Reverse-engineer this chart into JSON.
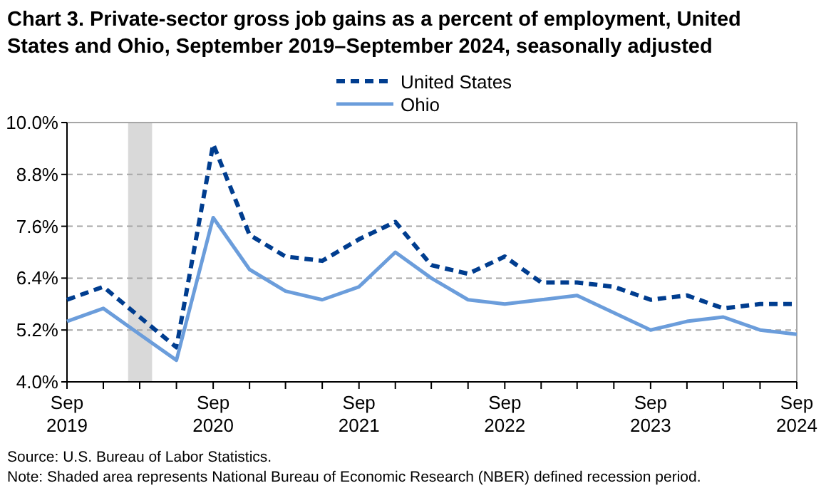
{
  "chart_data": {
    "type": "line",
    "title": "Chart 3. Private-sector gross job gains as a percent of employment, United States and Ohio, September 2019–September 2024, seasonally adjusted",
    "x": [
      "2019-09",
      "2019-12",
      "2020-03",
      "2020-06",
      "2020-09",
      "2020-12",
      "2021-03",
      "2021-06",
      "2021-09",
      "2021-12",
      "2022-03",
      "2022-06",
      "2022-09",
      "2022-12",
      "2023-03",
      "2023-06",
      "2023-09",
      "2023-12",
      "2024-03",
      "2024-06",
      "2024-09"
    ],
    "series": [
      {
        "name": "United States",
        "color": "#003d8f",
        "line_style": "dashed",
        "values": [
          5.9,
          6.2,
          5.5,
          4.8,
          9.5,
          7.4,
          6.9,
          6.8,
          7.3,
          7.7,
          6.7,
          6.5,
          6.9,
          6.3,
          6.3,
          6.2,
          5.9,
          6.0,
          5.7,
          5.8,
          5.8
        ]
      },
      {
        "name": "Ohio",
        "color": "#6b9ddb",
        "line_style": "solid",
        "values": [
          5.4,
          5.7,
          5.1,
          4.5,
          7.8,
          6.6,
          6.1,
          5.9,
          6.2,
          7.0,
          6.4,
          5.9,
          5.8,
          5.9,
          6.0,
          5.6,
          5.2,
          5.4,
          5.5,
          5.2,
          5.1
        ]
      }
    ],
    "xlim": [
      "2019-09",
      "2024-09"
    ],
    "xticks": [
      {
        "value": "2019-09",
        "label": "Sep 2019"
      },
      {
        "value": "2019-12",
        "label": null
      },
      {
        "value": "2020-03",
        "label": null
      },
      {
        "value": "2020-06",
        "label": null
      },
      {
        "value": "2020-09",
        "label": "Sep 2020"
      },
      {
        "value": "2020-12",
        "label": null
      },
      {
        "value": "2021-03",
        "label": null
      },
      {
        "value": "2021-06",
        "label": null
      },
      {
        "value": "2021-09",
        "label": "Sep 2021"
      },
      {
        "value": "2021-12",
        "label": null
      },
      {
        "value": "2022-03",
        "label": null
      },
      {
        "value": "2022-06",
        "label": null
      },
      {
        "value": "2022-09",
        "label": "Sep 2022"
      },
      {
        "value": "2022-12",
        "label": null
      },
      {
        "value": "2023-03",
        "label": null
      },
      {
        "value": "2023-06",
        "label": null
      },
      {
        "value": "2023-09",
        "label": "Sep 2023"
      },
      {
        "value": "2023-12",
        "label": null
      },
      {
        "value": "2024-03",
        "label": null
      },
      {
        "value": "2024-06",
        "label": null
      },
      {
        "value": "2024-09",
        "label": "Sep 2024"
      }
    ],
    "ylim": [
      4.0,
      10.0
    ],
    "yticks": [
      {
        "value": 4.0,
        "label": "4.0%"
      },
      {
        "value": 5.2,
        "label": "5.2%"
      },
      {
        "value": 6.4,
        "label": "6.4%"
      },
      {
        "value": 7.6,
        "label": "7.6%"
      },
      {
        "value": 8.8,
        "label": "8.8%"
      },
      {
        "value": 10.0,
        "label": "10.0%"
      }
    ],
    "grid": "y",
    "legend": "top",
    "marker": "none",
    "bands": [
      {
        "axis": "x",
        "from": "2020-02",
        "to": "2020-04",
        "color": "#d9d9d9"
      }
    ],
    "annotations": [
      "Source: U.S. Bureau of Labor Statistics.",
      "Note: Shaded area represents National Bureau of Economic Research (NBER) defined recession period."
    ]
  }
}
